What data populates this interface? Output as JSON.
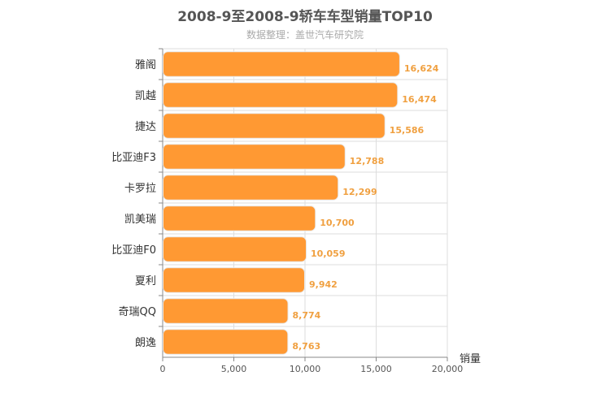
{
  "chart_data": {
    "type": "bar",
    "orientation": "horizontal",
    "title": "2008-9至2008-9轿车车型销量TOP10",
    "subtitle": "数据整理：盖世汽车研究院",
    "categories": [
      "雅阁",
      "凯越",
      "捷达",
      "比亚迪F3",
      "卡罗拉",
      "凯美瑞",
      "比亚迪F0",
      "夏利",
      "奇瑞QQ",
      "朗逸"
    ],
    "values": [
      16624,
      16474,
      15586,
      12788,
      12299,
      10700,
      10059,
      9942,
      8774,
      8763
    ],
    "value_labels": [
      "16,624",
      "16,474",
      "15,586",
      "12,788",
      "12,299",
      "10,700",
      "10,059",
      "9,942",
      "8,774",
      "8,763"
    ],
    "xlabel": "销量",
    "ylabel": "",
    "xlim": [
      0,
      20000
    ],
    "x_ticks": [
      0,
      5000,
      10000,
      15000,
      20000
    ],
    "x_tick_labels": [
      "0",
      "5,000",
      "10,000",
      "15,000",
      "20,000"
    ],
    "grid": true,
    "legend": "none",
    "colors": {
      "bar": "#ff9933",
      "bar_stroke": "#e8e8e8",
      "value_label": "#f0a040",
      "grid": "#dddddd",
      "axis": "#888888",
      "text": "#333333"
    }
  }
}
